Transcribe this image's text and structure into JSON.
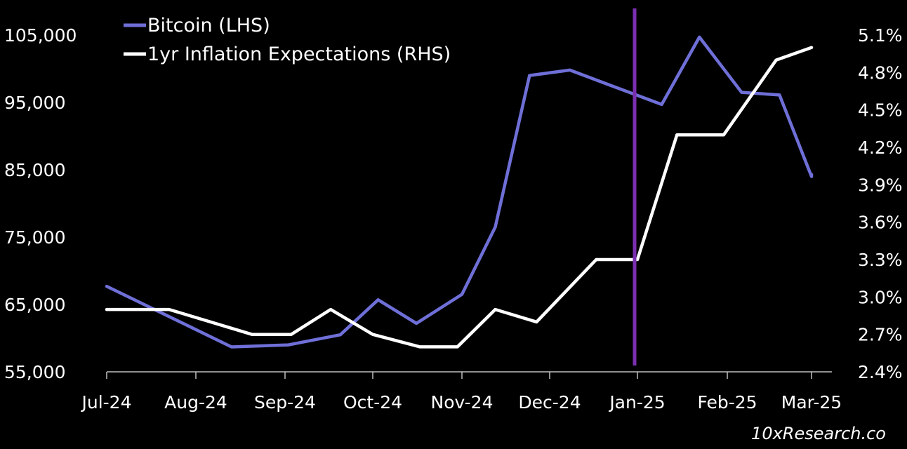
{
  "chart_data": {
    "type": "line",
    "x": [
      "Jul-24",
      "Jul-24b",
      "Aug-24",
      "Aug-24b",
      "Sep-24a",
      "Sep-24",
      "Sep-24b",
      "Oct-24",
      "Oct-24b",
      "Nov-24",
      "Nov-24b",
      "Dec-24a",
      "Dec-24b",
      "Jan-25",
      "Jan-25b",
      "Feb-25",
      "Feb-25b",
      "Mar-25"
    ],
    "x_tick_labels": [
      "Jul-24",
      "Aug-24",
      "Sep-24",
      "Oct-24",
      "Nov-24",
      "Dec-24",
      "Jan-25",
      "Feb-25",
      "Mar-25"
    ],
    "series": [
      {
        "name": "Bitcoin (LHS)",
        "axis": "left",
        "color": "#6f6fd8",
        "points": [
          [
            0,
            67700
          ],
          [
            1,
            58700
          ],
          [
            2,
            59000
          ],
          [
            3,
            60500
          ],
          [
            4,
            65700
          ],
          [
            5,
            62200
          ],
          [
            6,
            66500
          ],
          [
            7,
            76500
          ],
          [
            8,
            99000
          ],
          [
            9,
            99800
          ],
          [
            10,
            97500
          ],
          [
            11,
            94700
          ],
          [
            12,
            104700
          ],
          [
            13,
            96500
          ],
          [
            14,
            96100
          ],
          [
            15,
            84000
          ],
          [
            16,
            84300
          ]
        ],
        "x_index": [
          0,
          1.4,
          2.04,
          2.63,
          3.06,
          3.49,
          4.0,
          4.38,
          4.77,
          5.23,
          5.7,
          6.27,
          6.69,
          7.17,
          7.62,
          8.27,
          8.9
        ]
      },
      {
        "name": "1yr Inflation Expectations (RHS)",
        "axis": "right",
        "color": "#ffffff",
        "points": [
          [
            0,
            2.9
          ],
          [
            1,
            2.9
          ],
          [
            2,
            2.7
          ],
          [
            3,
            2.7
          ],
          [
            4,
            2.9
          ],
          [
            5,
            2.7
          ],
          [
            6,
            2.6
          ],
          [
            7,
            2.6
          ],
          [
            8,
            2.9
          ],
          [
            9,
            2.8
          ],
          [
            10,
            3.3
          ],
          [
            11,
            3.3
          ],
          [
            12,
            4.3
          ],
          [
            13,
            4.3
          ],
          [
            14,
            4.9
          ],
          [
            15,
            5.0
          ]
        ],
        "x_index": [
          0,
          0.7,
          1.63,
          2.07,
          2.52,
          3.0,
          3.53,
          3.95,
          4.38,
          4.85,
          5.53,
          6.0,
          6.44,
          6.96,
          7.58,
          8.0
        ]
      }
    ],
    "left_axis": {
      "ticks": [
        "105,000",
        "95,000",
        "85,000",
        "75,000",
        "65,000",
        "55,000"
      ],
      "tick_values": [
        105000,
        95000,
        85000,
        75000,
        65000,
        55000
      ],
      "ylim": [
        55000,
        105000
      ]
    },
    "right_axis": {
      "ticks": [
        "5.1%",
        "4.8%",
        "4.5%",
        "4.2%",
        "3.9%",
        "3.6%",
        "3.3%",
        "3.0%",
        "2.7%",
        "2.4%"
      ],
      "tick_values": [
        5.1,
        4.8,
        4.5,
        4.2,
        3.9,
        3.6,
        3.3,
        3.0,
        2.7,
        2.4
      ],
      "ylim": [
        2.4,
        5.1
      ]
    },
    "annotations": [
      {
        "type": "vertical-line",
        "at": "Jan-25",
        "color": "#7a2fb0"
      }
    ],
    "legend": [
      "Bitcoin (LHS)",
      "1yr Inflation Expectations (RHS)"
    ],
    "legend_placement": "top-left",
    "grid": false
  },
  "watermark": "10xResearch.co"
}
